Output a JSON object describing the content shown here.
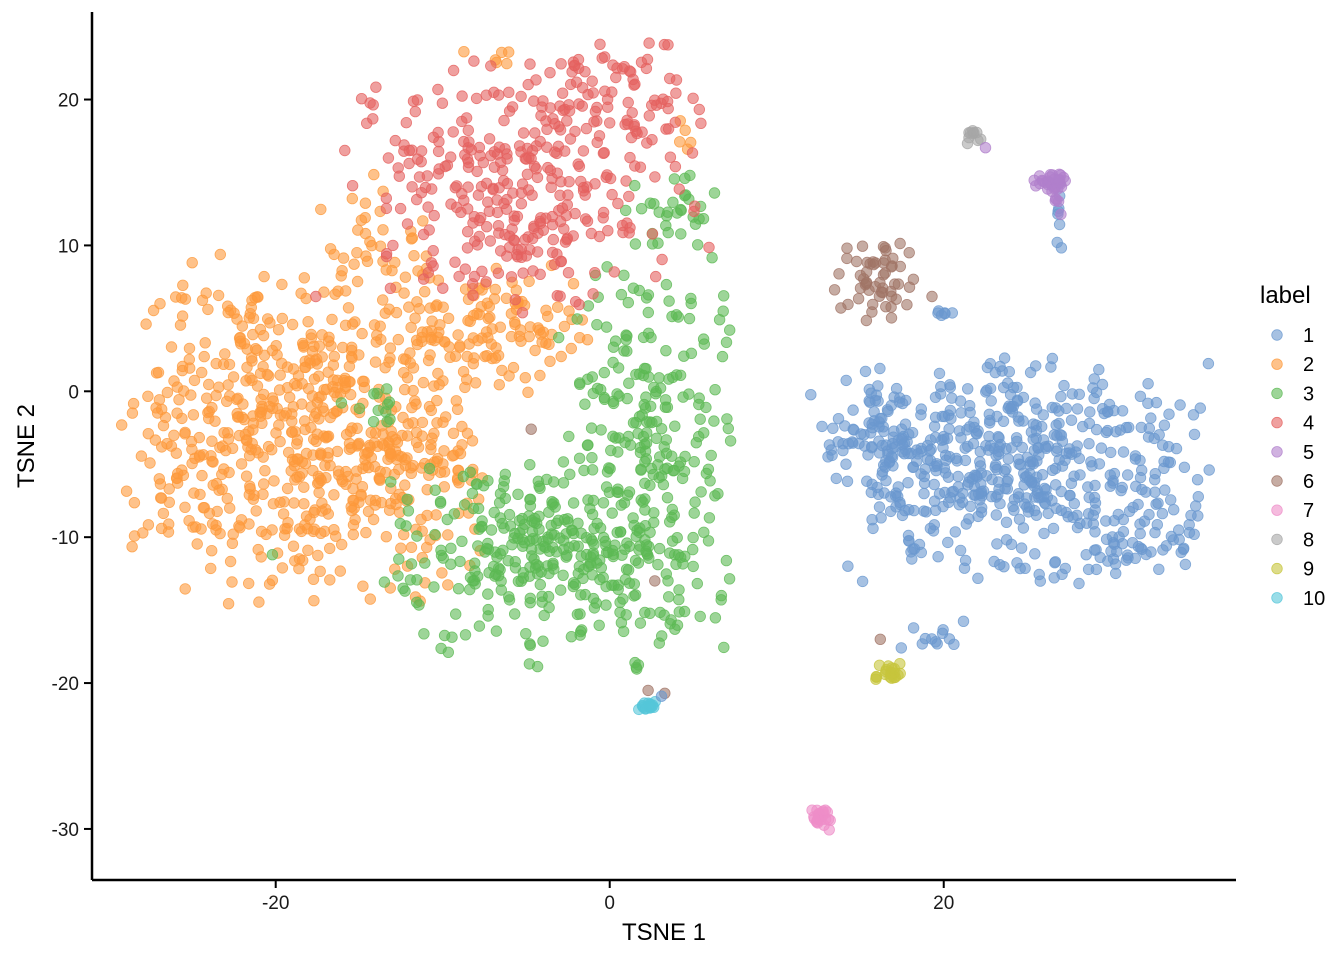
{
  "chart_data": {
    "type": "scatter",
    "title": "",
    "xlabel": "TSNE 1",
    "ylabel": "TSNE 2",
    "xlim": [
      -31,
      37.5
    ],
    "ylim": [
      -33.5,
      26
    ],
    "x_ticks": [
      -20,
      0,
      20
    ],
    "y_ticks": [
      -30,
      -20,
      -10,
      0,
      10,
      20
    ],
    "grid": false,
    "legend": {
      "title": "label",
      "position": "right"
    },
    "point_opacity": 0.6,
    "series": [
      {
        "name": "1",
        "color": "#6A98CF"
      },
      {
        "name": "2",
        "color": "#FD9A3C"
      },
      {
        "name": "3",
        "color": "#5CB954"
      },
      {
        "name": "4",
        "color": "#E5615F"
      },
      {
        "name": "5",
        "color": "#B07FCC"
      },
      {
        "name": "6",
        "color": "#A07466"
      },
      {
        "name": "7",
        "color": "#EE8DC8"
      },
      {
        "name": "8",
        "color": "#A6A6A6"
      },
      {
        "name": "9",
        "color": "#C7C53C"
      },
      {
        "name": "10",
        "color": "#55C6D9"
      }
    ],
    "clusters": [
      {
        "series": "1",
        "center": [
          24.5,
          -5.5
        ],
        "spread": [
          5.2,
          3.6
        ],
        "count": 520
      },
      {
        "series": "1",
        "center": [
          16.2,
          -3.2
        ],
        "spread": [
          1.6,
          2.0
        ],
        "count": 70
      },
      {
        "series": "1",
        "center": [
          31.5,
          -11.0
        ],
        "spread": [
          1.6,
          0.6
        ],
        "count": 30
      },
      {
        "series": "1",
        "center": [
          26.8,
          12.0
        ],
        "spread": [
          0.2,
          1.2
        ],
        "count": 8
      },
      {
        "series": "1",
        "center": [
          20.0,
          5.3
        ],
        "spread": [
          0.4,
          0.15
        ],
        "count": 6
      },
      {
        "series": "1",
        "center": [
          19.3,
          -16.5
        ],
        "spread": [
          1.0,
          0.8
        ],
        "count": 12
      },
      {
        "series": "2",
        "center": [
          -18.5,
          -2.5
        ],
        "spread": [
          5.0,
          5.5
        ],
        "count": 640
      },
      {
        "series": "2",
        "center": [
          -8.5,
          4.2
        ],
        "spread": [
          2.8,
          2.0
        ],
        "count": 90
      },
      {
        "series": "2",
        "center": [
          -11.0,
          -5.0
        ],
        "spread": [
          2.0,
          1.4
        ],
        "count": 50
      },
      {
        "series": "2",
        "center": [
          -14.5,
          9.0
        ],
        "spread": [
          1.8,
          2.8
        ],
        "count": 40
      },
      {
        "series": "2",
        "center": [
          -4.0,
          5.0
        ],
        "spread": [
          2.0,
          1.8
        ],
        "count": 30
      },
      {
        "series": "2",
        "center": [
          -7.0,
          22.5
        ],
        "spread": [
          0.8,
          0.7
        ],
        "count": 6
      },
      {
        "series": "2",
        "center": [
          4.5,
          17.5
        ],
        "spread": [
          0.5,
          0.8
        ],
        "count": 5
      },
      {
        "series": "3",
        "center": [
          -3.0,
          -11.0
        ],
        "spread": [
          4.8,
          3.2
        ],
        "count": 360
      },
      {
        "series": "3",
        "center": [
          2.2,
          -1.5
        ],
        "spread": [
          2.4,
          4.8
        ],
        "count": 190
      },
      {
        "series": "3",
        "center": [
          3.8,
          12.0
        ],
        "spread": [
          1.4,
          1.5
        ],
        "count": 30
      },
      {
        "series": "3",
        "center": [
          -14.0,
          -0.8
        ],
        "spread": [
          1.0,
          0.7
        ],
        "count": 12
      },
      {
        "series": "3",
        "center": [
          1.6,
          -18.9
        ],
        "spread": [
          0.1,
          0.2
        ],
        "count": 4
      },
      {
        "series": "4",
        "center": [
          -5.0,
          14.0
        ],
        "spread": [
          5.0,
          4.0
        ],
        "count": 330
      },
      {
        "series": "4",
        "center": [
          0.5,
          21.0
        ],
        "spread": [
          2.6,
          1.8
        ],
        "count": 60
      },
      {
        "series": "5",
        "center": [
          26.4,
          14.3
        ],
        "spread": [
          0.5,
          0.35
        ],
        "count": 30
      },
      {
        "series": "5",
        "center": [
          26.8,
          12.6
        ],
        "spread": [
          0.15,
          0.6
        ],
        "count": 5
      },
      {
        "series": "6",
        "center": [
          15.8,
          7.8
        ],
        "spread": [
          1.2,
          1.4
        ],
        "count": 55
      },
      {
        "series": "7",
        "center": [
          12.6,
          -29.3
        ],
        "spread": [
          0.4,
          0.35
        ],
        "count": 25
      },
      {
        "series": "8",
        "center": [
          21.6,
          17.4
        ],
        "spread": [
          0.45,
          0.2
        ],
        "count": 10
      },
      {
        "series": "9",
        "center": [
          16.8,
          -19.3
        ],
        "spread": [
          0.45,
          0.35
        ],
        "count": 20
      },
      {
        "series": "10",
        "center": [
          2.3,
          -21.6
        ],
        "spread": [
          0.35,
          0.15
        ],
        "count": 18
      }
    ],
    "points": [
      {
        "series": "3",
        "x": 4.8,
        "y": 14.8
      },
      {
        "series": "3",
        "x": 4.5,
        "y": 14.6
      },
      {
        "series": "3",
        "x": 1.5,
        "y": 14.1
      },
      {
        "series": "6",
        "x": 19.3,
        "y": 6.5
      },
      {
        "series": "6",
        "x": 16.2,
        "y": -17.0
      },
      {
        "series": "6",
        "x": 2.3,
        "y": -20.5
      },
      {
        "series": "6",
        "x": 3.3,
        "y": -20.7
      },
      {
        "series": "6",
        "x": 2.7,
        "y": -13.0
      },
      {
        "series": "6",
        "x": -4.7,
        "y": -2.6
      },
      {
        "series": "4",
        "x": -17.6,
        "y": 6.5
      },
      {
        "series": "1",
        "x": 3.1,
        "y": -20.9
      },
      {
        "series": "3",
        "x": -20.2,
        "y": -11.2
      },
      {
        "series": "5",
        "x": 22.5,
        "y": 16.7
      }
    ]
  }
}
